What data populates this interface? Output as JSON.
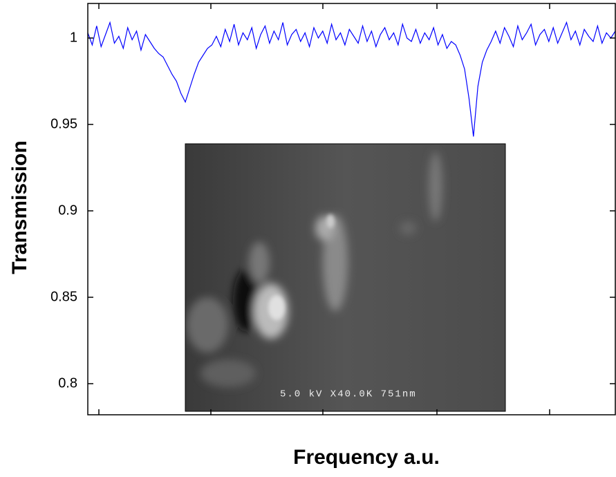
{
  "chart_data": {
    "type": "line",
    "x_label": "Frequency a.u.",
    "y_label": "Transmission",
    "annotations": [
      "5.0 kV X40.0K  751nm"
    ],
    "ylim": [
      0.782,
      1.02
    ],
    "yticks": [
      0.8,
      0.85,
      0.9,
      0.95,
      1
    ],
    "series": [
      {
        "color": "#0000ff",
        "values": [
          1.003,
          0.996,
          1.007,
          0.995,
          1.002,
          1.009,
          0.997,
          1.001,
          0.994,
          1.006,
          0.999,
          1.004,
          0.993,
          1.002,
          0.998,
          0.994,
          0.991,
          0.989,
          0.984,
          0.979,
          0.975,
          0.968,
          0.963,
          0.971,
          0.979,
          0.986,
          0.99,
          0.994,
          0.996,
          1.001,
          0.995,
          1.005,
          0.998,
          1.008,
          0.996,
          1.003,
          0.999,
          1.006,
          0.994,
          1.002,
          1.007,
          0.997,
          1.004,
          0.999,
          1.009,
          0.996,
          1.002,
          1.005,
          0.998,
          1.003,
          0.995,
          1.006,
          1.0,
          1.004,
          0.997,
          1.008,
          0.999,
          1.003,
          0.996,
          1.005,
          1.001,
          0.997,
          1.007,
          0.998,
          1.004,
          0.995,
          1.002,
          1.006,
          0.999,
          1.003,
          0.996,
          1.008,
          1.0,
          0.998,
          1.005,
          0.997,
          1.003,
          0.999,
          1.006,
          0.996,
          1.002,
          0.994,
          0.998,
          0.996,
          0.99,
          0.982,
          0.965,
          0.943,
          0.972,
          0.986,
          0.993,
          0.998,
          1.004,
          0.997,
          1.006,
          1.001,
          0.995,
          1.007,
          0.999,
          1.003,
          1.008,
          0.996,
          1.002,
          1.005,
          0.998,
          1.006,
          0.997,
          1.003,
          1.009,
          0.999,
          1.004,
          0.996,
          1.005,
          1.001,
          0.998,
          1.007,
          0.997,
          1.003,
          1.0,
          1.004
        ]
      }
    ]
  }
}
